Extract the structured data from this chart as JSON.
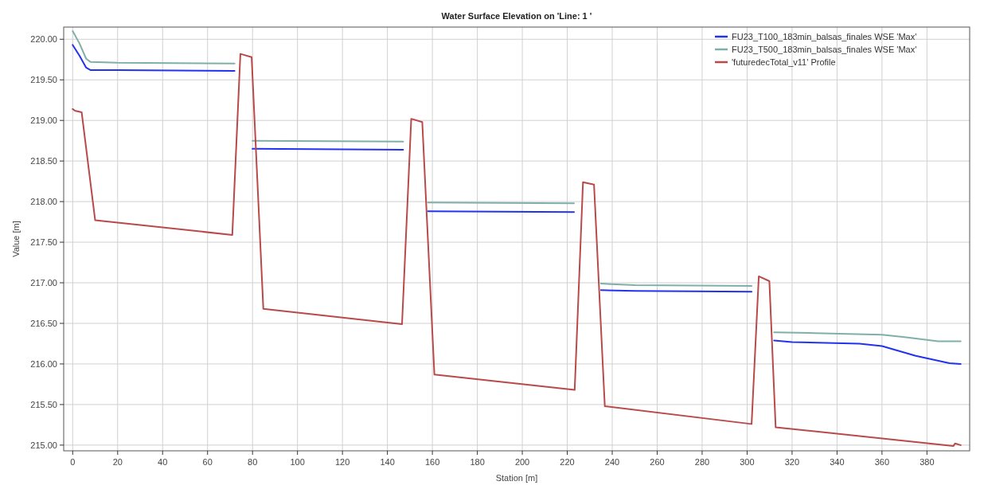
{
  "chart_data": {
    "type": "line",
    "title": "Water Surface Elevation on 'Line: 1 '",
    "xlabel": "Station [m]",
    "ylabel": "Value [m]",
    "xlim": [
      -4,
      399
    ],
    "xticks": [
      0,
      20,
      40,
      60,
      80,
      100,
      120,
      140,
      160,
      180,
      200,
      220,
      240,
      260,
      280,
      300,
      320,
      340,
      360,
      380
    ],
    "ylim": [
      214.93,
      220.15
    ],
    "yticks": [
      {
        "value": 215,
        "label": "215.00"
      },
      {
        "value": 215.5,
        "label": "215.50"
      },
      {
        "value": 216,
        "label": "216.00"
      },
      {
        "value": 216.5,
        "label": "216.50"
      },
      {
        "value": 217,
        "label": "217.00"
      },
      {
        "value": 217.5,
        "label": "217.50"
      },
      {
        "value": 218,
        "label": "218.00"
      },
      {
        "value": 218.5,
        "label": "218.50"
      },
      {
        "value": 219,
        "label": "219.00"
      },
      {
        "value": 219.5,
        "label": "219.50"
      },
      {
        "value": 220,
        "label": "220.00"
      }
    ],
    "grid": true,
    "legend": "top right",
    "line_style": "solid",
    "marker": "none",
    "series": [
      {
        "name": "FU23_T100_183min_balsas_finales WSE 'Max'",
        "color": "#2233ee",
        "x": [
          0,
          3,
          6,
          8,
          20,
          72,
          76,
          80,
          147,
          150,
          158,
          223,
          229,
          235,
          250,
          302,
          307,
          312,
          320,
          350,
          360,
          375,
          390,
          395
        ],
        "values": [
          219.93,
          219.8,
          219.65,
          219.62,
          219.62,
          219.61,
          null,
          218.65,
          218.64,
          null,
          217.88,
          217.87,
          null,
          216.91,
          216.9,
          216.89,
          null,
          216.29,
          216.27,
          216.25,
          216.22,
          216.1,
          216.01,
          216.0
        ]
      },
      {
        "name": "FU23_T500_183min_balsas_finales WSE 'Max'",
        "color": "#7fb0a8",
        "x": [
          0,
          3,
          6,
          8,
          20,
          72,
          76,
          80,
          147,
          150,
          158,
          223,
          229,
          235,
          250,
          302,
          307,
          312,
          330,
          360,
          370,
          385,
          395
        ],
        "values": [
          220.1,
          219.95,
          219.76,
          219.72,
          219.71,
          219.7,
          null,
          218.75,
          218.74,
          null,
          217.99,
          217.98,
          null,
          216.99,
          216.97,
          216.96,
          null,
          216.39,
          216.38,
          216.36,
          216.33,
          216.28,
          216.28
        ]
      },
      {
        "name": "'futuredecTotal_v11' Profile",
        "color": "#b84a4a",
        "x": [
          0,
          1,
          4,
          10,
          71,
          74.6,
          79.6,
          84.8,
          146.5,
          150.6,
          155.5,
          160.9,
          223.3,
          227,
          231.9,
          236.7,
          302,
          305.2,
          309.9,
          312.7,
          391.8,
          392.5,
          395
        ],
        "values": [
          219.14,
          219.12,
          219.1,
          217.77,
          217.59,
          219.82,
          219.78,
          216.68,
          216.49,
          219.02,
          218.98,
          215.87,
          215.68,
          218.24,
          218.21,
          215.48,
          215.26,
          217.08,
          217.02,
          215.22,
          214.99,
          215.02,
          215.0
        ]
      }
    ]
  }
}
